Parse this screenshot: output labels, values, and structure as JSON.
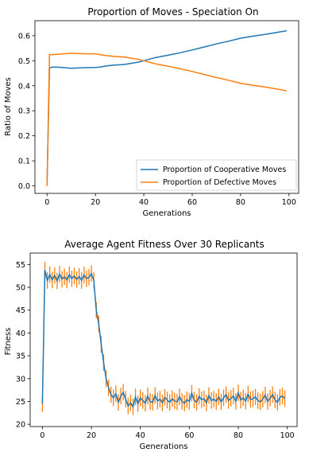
{
  "chart_data": [
    {
      "type": "line",
      "title": "Proportion of Moves - Speciation On",
      "xlabel": "Generations",
      "ylabel": "Ratio of Moves",
      "xlim": [
        -5,
        104
      ],
      "ylim": [
        -0.03,
        0.66
      ],
      "x_ticks": [
        0,
        20,
        40,
        60,
        80,
        100
      ],
      "x_tick_labels": [
        "0",
        "20",
        "40",
        "60",
        "80",
        "100"
      ],
      "y_ticks": [
        0.0,
        0.1,
        0.2,
        0.3,
        0.4,
        0.5,
        0.6
      ],
      "y_tick_labels": [
        "0.0",
        "0.1",
        "0.2",
        "0.3",
        "0.4",
        "0.5",
        "0.6"
      ],
      "legend": "lower-right",
      "colors": {
        "cooperative": "#1f77b4",
        "defective": "#ff7f0e"
      },
      "series": [
        {
          "name": "Proportion of Cooperative Moves",
          "x": [
            0,
            1,
            2,
            5,
            10,
            15,
            20,
            22,
            25,
            28,
            32,
            35,
            38,
            40,
            45,
            50,
            55,
            60,
            65,
            70,
            75,
            80,
            85,
            90,
            95,
            99
          ],
          "y": [
            0.0,
            0.47,
            0.475,
            0.474,
            0.47,
            0.472,
            0.473,
            0.475,
            0.48,
            0.483,
            0.485,
            0.49,
            0.495,
            0.5,
            0.513,
            0.522,
            0.532,
            0.543,
            0.555,
            0.567,
            0.578,
            0.59,
            0.598,
            0.605,
            0.613,
            0.62
          ]
        },
        {
          "name": "Proportion of Defective Moves",
          "x": [
            0,
            1,
            2,
            5,
            10,
            15,
            20,
            22,
            25,
            28,
            32,
            35,
            38,
            40,
            45,
            50,
            55,
            60,
            65,
            70,
            75,
            80,
            85,
            90,
            95,
            99
          ],
          "y": [
            0.0,
            0.525,
            0.524,
            0.526,
            0.53,
            0.528,
            0.527,
            0.524,
            0.52,
            0.517,
            0.515,
            0.51,
            0.505,
            0.5,
            0.487,
            0.478,
            0.468,
            0.457,
            0.445,
            0.433,
            0.422,
            0.41,
            0.402,
            0.395,
            0.387,
            0.38
          ]
        }
      ]
    },
    {
      "type": "line",
      "title": "Average Agent Fitness Over 30 Replicants",
      "xlabel": "Generations",
      "ylabel": "Fitness",
      "xlim": [
        -5,
        104
      ],
      "ylim": [
        19.5,
        57.5
      ],
      "x_ticks": [
        0,
        20,
        40,
        60,
        80,
        100
      ],
      "x_tick_labels": [
        "0",
        "20",
        "40",
        "60",
        "80",
        "100"
      ],
      "y_ticks": [
        20,
        25,
        30,
        35,
        40,
        45,
        50,
        55
      ],
      "y_tick_labels": [
        "20",
        "25",
        "30",
        "35",
        "40",
        "45",
        "50",
        "55"
      ],
      "colors": {
        "mean": "#1f77b4",
        "error": "#ff7f0e"
      },
      "series": [
        {
          "x": [
            0,
            1,
            2,
            3,
            4,
            5,
            6,
            7,
            8,
            9,
            10,
            11,
            12,
            13,
            14,
            15,
            16,
            17,
            18,
            19,
            20,
            21,
            22,
            23,
            24,
            25,
            26,
            27,
            28,
            29,
            30,
            31,
            32,
            33,
            34,
            35,
            36,
            37,
            38,
            39,
            40,
            41,
            42,
            43,
            44,
            45,
            46,
            47,
            48,
            49,
            50,
            51,
            52,
            53,
            54,
            55,
            56,
            57,
            58,
            59,
            60,
            61,
            62,
            63,
            64,
            65,
            66,
            67,
            68,
            69,
            70,
            71,
            72,
            73,
            74,
            75,
            76,
            77,
            78,
            79,
            80,
            81,
            82,
            83,
            84,
            85,
            86,
            87,
            88,
            89,
            90,
            91,
            92,
            93,
            94,
            95,
            96,
            97,
            98,
            99
          ],
          "y": [
            24.5,
            53.8,
            51.5,
            52.8,
            51.6,
            52.6,
            51.4,
            52.9,
            51.8,
            52.3,
            51.6,
            52.8,
            51.9,
            52.5,
            51.7,
            52.4,
            51.5,
            52.7,
            51.9,
            52.2,
            53.0,
            51.5,
            45.0,
            42.0,
            37.5,
            33.5,
            30.0,
            28.0,
            26.5,
            25.8,
            26.7,
            24.8,
            26.2,
            27.0,
            25.5,
            24.0,
            24.7,
            23.8,
            26.0,
            24.5,
            25.8,
            25.2,
            24.6,
            26.2,
            25.0,
            24.8,
            26.3,
            25.1,
            25.5,
            24.7,
            25.9,
            25.3,
            24.8,
            25.6,
            25.1,
            24.9,
            26.0,
            25.0,
            24.6,
            25.4,
            25.0,
            26.8,
            25.3,
            24.8,
            26.1,
            25.4,
            25.6,
            24.7,
            26.3,
            25.2,
            25.5,
            25.0,
            26.0,
            24.9,
            25.8,
            26.5,
            25.2,
            25.7,
            26.2,
            25.0,
            26.9,
            25.3,
            25.8,
            25.1,
            26.6,
            25.4,
            25.6,
            26.0,
            25.2,
            24.9,
            25.5,
            26.4,
            25.0,
            25.7,
            26.5,
            25.3,
            24.8,
            25.9,
            26.2,
            25.6
          ],
          "error": 1.8
        }
      ]
    }
  ]
}
